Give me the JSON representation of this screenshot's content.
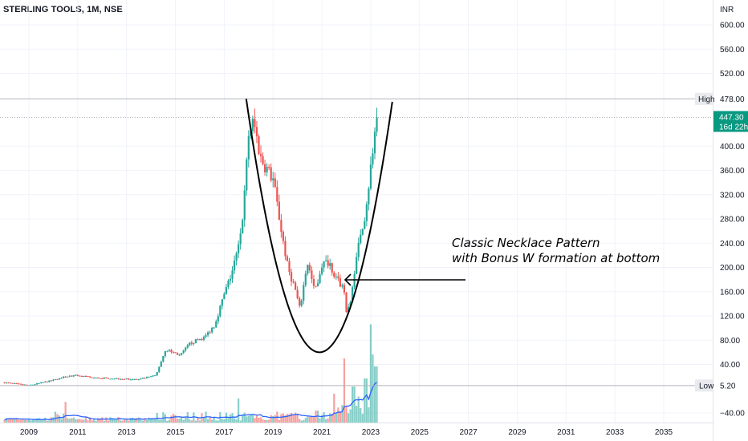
{
  "header": {
    "symbol": "STERLING TOOLS, 1M, NSE"
  },
  "chart_data": {
    "type": "candlestick",
    "title": "STERLING TOOLS, 1M, NSE",
    "currency": "INR",
    "ylim": [
      -55,
      625
    ],
    "y_ticks": [
      600,
      560,
      520,
      400,
      360,
      320,
      280,
      240,
      200,
      160,
      120,
      80,
      40,
      -40
    ],
    "y_tick_labels": [
      "600.00",
      "560.00",
      "520.00",
      "400.00",
      "360.00",
      "320.00",
      "280.00",
      "240.00",
      "200.00",
      "160.00",
      "120.00",
      "80.00",
      "40.00",
      "−40.00"
    ],
    "x_range": [
      2008.0,
      2036.3
    ],
    "x_ticks": [
      2009,
      2011,
      2013,
      2015,
      2017,
      2019,
      2021,
      2023,
      2025,
      2027,
      2029,
      2031,
      2033,
      2035
    ],
    "high": {
      "label": "High",
      "value": 478.0,
      "value_label": "478.00"
    },
    "low": {
      "label": "Low",
      "value": 5.2,
      "value_label": "5.20"
    },
    "last_price": {
      "value": 447.3,
      "value_label": "447.30",
      "countdown": "16d 22h"
    },
    "price_path": [
      [
        2008.0,
        10
      ],
      [
        2009.0,
        5.2
      ],
      [
        2010.0,
        14
      ],
      [
        2010.5,
        20
      ],
      [
        2011.0,
        22
      ],
      [
        2011.6,
        18
      ],
      [
        2012.5,
        17
      ],
      [
        2013.5,
        15
      ],
      [
        2014.2,
        22
      ],
      [
        2014.6,
        65
      ],
      [
        2015.2,
        55
      ],
      [
        2015.6,
        75
      ],
      [
        2016.2,
        85
      ],
      [
        2016.6,
        105
      ],
      [
        2017.0,
        155
      ],
      [
        2017.3,
        190
      ],
      [
        2017.6,
        235
      ],
      [
        2017.8,
        300
      ],
      [
        2018.0,
        420
      ],
      [
        2018.2,
        440
      ],
      [
        2018.5,
        380
      ],
      [
        2019.0,
        345
      ],
      [
        2019.3,
        270
      ],
      [
        2019.6,
        200
      ],
      [
        2019.9,
        165
      ],
      [
        2020.1,
        130
      ],
      [
        2020.4,
        210
      ],
      [
        2020.7,
        160
      ],
      [
        2021.0,
        205
      ],
      [
        2021.3,
        210
      ],
      [
        2021.6,
        180
      ],
      [
        2021.9,
        165
      ],
      [
        2022.0,
        130
      ],
      [
        2022.2,
        145
      ],
      [
        2022.4,
        220
      ],
      [
        2022.7,
        270
      ],
      [
        2022.9,
        330
      ],
      [
        2023.1,
        400
      ],
      [
        2023.25,
        447.3
      ]
    ],
    "volume_spikes": [
      [
        2010.1,
        22
      ],
      [
        2010.5,
        38
      ],
      [
        2017.6,
        60
      ],
      [
        2020.8,
        30
      ],
      [
        2021.5,
        72
      ],
      [
        2021.9,
        160
      ],
      [
        2022.3,
        90
      ],
      [
        2022.5,
        65
      ],
      [
        2022.8,
        110
      ],
      [
        2023.0,
        245
      ],
      [
        2023.1,
        170
      ],
      [
        2023.2,
        140
      ]
    ],
    "fit_curve": {
      "vertex_x": 2020.9,
      "vertex_y": 60,
      "left_x": 2017.9,
      "left_y": 478
    },
    "annotation": {
      "lines": [
        "Classic Necklace Pattern",
        "with Bonus W formation at bottom"
      ]
    },
    "colors": {
      "up": "#26a69a",
      "down": "#ef5350",
      "ma": "#2962ff",
      "curve": "#000000",
      "grid": "#f0f3fa",
      "last_price": "#089981"
    }
  }
}
